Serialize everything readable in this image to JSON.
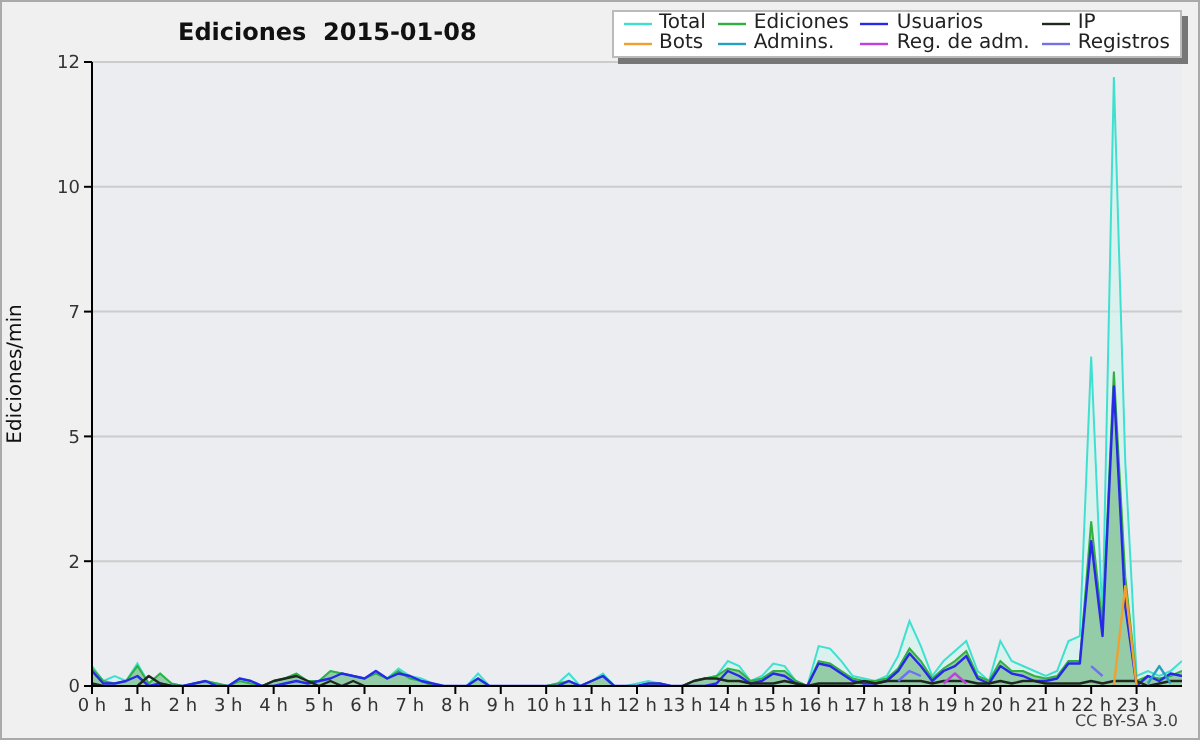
{
  "chart_data": {
    "type": "area",
    "title": "Ediciones  2015-01-08",
    "ylabel": "Ediciones/min",
    "annotations": [
      "CC BY-SA 3.0"
    ],
    "x": [
      0,
      0.25,
      0.5,
      0.75,
      1,
      1.25,
      1.5,
      1.75,
      2,
      2.25,
      2.5,
      2.75,
      3,
      3.25,
      3.5,
      3.75,
      4,
      4.25,
      4.5,
      4.75,
      5,
      5.25,
      5.5,
      5.75,
      6,
      6.25,
      6.5,
      6.75,
      7,
      7.25,
      7.5,
      7.75,
      8,
      8.25,
      8.5,
      8.75,
      9,
      9.25,
      9.5,
      9.75,
      10,
      10.25,
      10.5,
      10.75,
      11,
      11.25,
      11.5,
      11.75,
      12,
      12.25,
      12.5,
      12.75,
      13,
      13.25,
      13.5,
      13.75,
      14,
      14.25,
      14.5,
      14.75,
      15,
      15.25,
      15.5,
      15.75,
      16,
      16.25,
      16.5,
      16.75,
      17,
      17.25,
      17.5,
      17.75,
      18,
      18.25,
      18.5,
      18.75,
      19,
      19.25,
      19.5,
      19.75,
      20,
      20.25,
      20.5,
      20.75,
      21,
      21.25,
      21.5,
      21.75,
      22,
      22.25,
      22.5,
      22.75,
      23,
      23.25,
      23.5,
      23.75,
      24
    ],
    "series": [
      {
        "name": "Total",
        "color": "#40e0d0",
        "values": [
          0.4,
          0.1,
          0.2,
          0.1,
          0.45,
          0.05,
          0.25,
          0.05,
          0,
          0.05,
          0.1,
          0.05,
          0,
          0.15,
          0.1,
          0,
          0.1,
          0.15,
          0.25,
          0.1,
          0.1,
          0.3,
          0.25,
          0.2,
          0.15,
          0.3,
          0.15,
          0.35,
          0.2,
          0.15,
          0.05,
          0,
          0,
          0,
          0.25,
          0,
          0,
          0,
          0,
          0,
          0,
          0.05,
          0.25,
          0,
          0.1,
          0.25,
          0,
          0,
          0.05,
          0.1,
          0.05,
          0,
          0,
          0.1,
          0.15,
          0.2,
          0.5,
          0.4,
          0.1,
          0.2,
          0.45,
          0.4,
          0.1,
          0,
          0.8,
          0.75,
          0.5,
          0.2,
          0.15,
          0.1,
          0.2,
          0.6,
          1.3,
          0.8,
          0.2,
          0.5,
          0.7,
          0.9,
          0.3,
          0.1,
          0.9,
          0.5,
          0.4,
          0.3,
          0.2,
          0.3,
          0.9,
          1.0,
          6.6,
          1.3,
          12.2,
          4.5,
          0.2,
          0.3,
          0.2,
          0.3,
          0.5
        ]
      },
      {
        "name": "Ediciones",
        "color": "#30b040",
        "values": [
          0.35,
          0.1,
          0.05,
          0.1,
          0.4,
          0.05,
          0.25,
          0.05,
          0,
          0.05,
          0.1,
          0.05,
          0,
          0.1,
          0.05,
          0,
          0.1,
          0.15,
          0.25,
          0.1,
          0.1,
          0.3,
          0.25,
          0.2,
          0.15,
          0.25,
          0.15,
          0.3,
          0.15,
          0.1,
          0,
          0,
          0,
          0,
          0.15,
          0,
          0,
          0,
          0,
          0,
          0,
          0.05,
          0.1,
          0,
          0.1,
          0.2,
          0,
          0,
          0,
          0.05,
          0.05,
          0,
          0,
          0.1,
          0.15,
          0.2,
          0.35,
          0.3,
          0.1,
          0.15,
          0.3,
          0.3,
          0.1,
          0,
          0.5,
          0.45,
          0.3,
          0.15,
          0.1,
          0.1,
          0.15,
          0.35,
          0.75,
          0.5,
          0.15,
          0.35,
          0.5,
          0.7,
          0.2,
          0.1,
          0.5,
          0.3,
          0.3,
          0.2,
          0.15,
          0.2,
          0.5,
          0.5,
          3.3,
          1.2,
          6.3,
          2.2,
          0.1,
          0.2,
          0.15,
          0.2,
          0.3
        ]
      },
      {
        "name": "Usuarios",
        "type": "line",
        "color": "#2828e8",
        "values": [
          0.3,
          0.05,
          0.05,
          0.1,
          0.2,
          0,
          0.05,
          0,
          0,
          0.05,
          0.1,
          0,
          0,
          0.15,
          0.1,
          0,
          0,
          0.05,
          0.1,
          0.05,
          0.1,
          0.15,
          0.25,
          0.2,
          0.15,
          0.3,
          0.15,
          0.25,
          0.2,
          0.1,
          0.05,
          0,
          0,
          0,
          0.15,
          0,
          0,
          0,
          0,
          0,
          0,
          0,
          0.1,
          0,
          0.1,
          0.2,
          0,
          0,
          0,
          0.05,
          0.05,
          0,
          0,
          0,
          0,
          0.05,
          0.3,
          0.2,
          0.05,
          0.1,
          0.25,
          0.2,
          0.05,
          0,
          0.45,
          0.4,
          0.25,
          0.1,
          0.05,
          0.05,
          0.1,
          0.3,
          0.65,
          0.4,
          0.1,
          0.3,
          0.4,
          0.6,
          0.15,
          0.05,
          0.4,
          0.25,
          0.2,
          0.1,
          0.1,
          0.15,
          0.45,
          0.45,
          2.9,
          1.0,
          6.0,
          1.6,
          0,
          0.2,
          0.1,
          0.25,
          0.2
        ]
      },
      {
        "name": "IP",
        "type": "line",
        "color": "#202820",
        "values": [
          0.05,
          0,
          null,
          null,
          0,
          0.2,
          0.05,
          0,
          null,
          null,
          null,
          null,
          null,
          null,
          null,
          0,
          0.1,
          0.15,
          0.2,
          0.1,
          0,
          0.1,
          0,
          0.1,
          0,
          null,
          null,
          null,
          null,
          null,
          null,
          null,
          null,
          null,
          null,
          null,
          null,
          null,
          null,
          null,
          null,
          null,
          null,
          null,
          null,
          null,
          null,
          null,
          null,
          null,
          null,
          null,
          0,
          0.1,
          0.15,
          0.15,
          0.1,
          0.1,
          0.05,
          0.05,
          0.05,
          0.1,
          0.05,
          0,
          0.05,
          0.05,
          0.05,
          0.05,
          0.1,
          0.05,
          0.1,
          0.1,
          0.1,
          0.1,
          0.05,
          0.1,
          0.1,
          0.1,
          0.05,
          0.05,
          0.1,
          0.05,
          0.1,
          0.1,
          0.05,
          0.05,
          0.05,
          0.05,
          0.1,
          0.05,
          0.1,
          0.1,
          0.1,
          0,
          0.05,
          0.1,
          0.1
        ]
      },
      {
        "name": "Bots",
        "type": "line",
        "color": "#f0a030",
        "values": [
          null,
          null,
          null,
          null,
          null,
          null,
          null,
          null,
          null,
          null,
          null,
          null,
          null,
          null,
          null,
          null,
          null,
          null,
          null,
          null,
          null,
          null,
          null,
          null,
          null,
          null,
          null,
          null,
          null,
          null,
          null,
          null,
          null,
          null,
          null,
          null,
          null,
          null,
          null,
          null,
          null,
          null,
          null,
          null,
          null,
          null,
          null,
          null,
          null,
          null,
          null,
          null,
          null,
          null,
          null,
          null,
          null,
          null,
          null,
          null,
          null,
          null,
          null,
          null,
          null,
          null,
          null,
          null,
          null,
          null,
          null,
          null,
          null,
          null,
          null,
          null,
          null,
          null,
          null,
          null,
          null,
          null,
          null,
          null,
          null,
          null,
          null,
          null,
          null,
          null,
          0,
          2,
          0,
          null,
          null,
          null,
          null
        ]
      },
      {
        "name": "Admins.",
        "type": "line",
        "color": "#2aa0c0",
        "values": [
          null,
          null,
          null,
          null,
          null,
          null,
          null,
          null,
          null,
          null,
          null,
          null,
          null,
          null,
          null,
          null,
          null,
          null,
          null,
          null,
          null,
          null,
          null,
          null,
          null,
          null,
          null,
          null,
          null,
          null,
          null,
          null,
          null,
          null,
          null,
          null,
          null,
          null,
          null,
          null,
          null,
          null,
          null,
          null,
          null,
          null,
          null,
          null,
          null,
          null,
          null,
          null,
          null,
          null,
          null,
          null,
          null,
          null,
          null,
          null,
          null,
          null,
          null,
          null,
          null,
          null,
          null,
          null,
          null,
          null,
          null,
          null,
          null,
          null,
          null,
          null,
          null,
          null,
          null,
          null,
          null,
          null,
          null,
          null,
          null,
          null,
          null,
          null,
          null,
          null,
          null,
          null,
          null,
          0.05,
          0.4,
          0.05,
          null
        ]
      },
      {
        "name": "Reg. de adm.",
        "type": "line",
        "color": "#c040e0",
        "values": [
          null,
          null,
          null,
          null,
          null,
          null,
          null,
          null,
          null,
          null,
          null,
          null,
          null,
          null,
          null,
          null,
          null,
          null,
          null,
          null,
          null,
          null,
          null,
          null,
          null,
          null,
          null,
          null,
          null,
          null,
          null,
          null,
          null,
          null,
          null,
          null,
          null,
          null,
          null,
          null,
          null,
          null,
          null,
          null,
          null,
          null,
          null,
          null,
          null,
          null,
          null,
          null,
          null,
          null,
          null,
          null,
          null,
          null,
          null,
          null,
          null,
          null,
          null,
          null,
          null,
          null,
          null,
          null,
          null,
          null,
          null,
          null,
          null,
          null,
          null,
          0.05,
          0.25,
          0.05,
          null,
          null,
          null,
          null,
          null,
          null,
          null,
          null,
          null,
          null,
          null,
          null,
          null,
          null,
          null,
          null,
          null,
          null,
          null
        ]
      },
      {
        "name": "Registros",
        "type": "line",
        "color": "#7070f0",
        "values": [
          null,
          null,
          null,
          null,
          null,
          null,
          null,
          null,
          null,
          null,
          null,
          null,
          null,
          null,
          null,
          null,
          null,
          null,
          null,
          null,
          null,
          null,
          null,
          null,
          null,
          null,
          null,
          null,
          null,
          null,
          null,
          null,
          null,
          null,
          null,
          null,
          null,
          null,
          null,
          null,
          null,
          null,
          null,
          null,
          null,
          null,
          null,
          null,
          null,
          null,
          null,
          null,
          null,
          null,
          null,
          null,
          null,
          null,
          null,
          null,
          null,
          null,
          null,
          null,
          null,
          null,
          null,
          null,
          null,
          null,
          null,
          0.1,
          0.3,
          0.2,
          null,
          null,
          null,
          null,
          null,
          null,
          null,
          null,
          null,
          null,
          null,
          null,
          null,
          null,
          0.4,
          0.2,
          null,
          null,
          null,
          null,
          null,
          null,
          null
        ]
      }
    ],
    "xlim": [
      0,
      24
    ],
    "xticks": [
      {
        "value": 0,
        "label": "0 h"
      },
      {
        "value": 1,
        "label": "1 h"
      },
      {
        "value": 2,
        "label": "2 h"
      },
      {
        "value": 3,
        "label": "3 h"
      },
      {
        "value": 4,
        "label": "4 h"
      },
      {
        "value": 5,
        "label": "5 h"
      },
      {
        "value": 6,
        "label": "6 h"
      },
      {
        "value": 7,
        "label": "7 h"
      },
      {
        "value": 8,
        "label": "8 h"
      },
      {
        "value": 9,
        "label": "9 h"
      },
      {
        "value": 10,
        "label": "10 h"
      },
      {
        "value": 11,
        "label": "11 h"
      },
      {
        "value": 12,
        "label": "12 h"
      },
      {
        "value": 13,
        "label": "13 h"
      },
      {
        "value": 14,
        "label": "14 h"
      },
      {
        "value": 15,
        "label": "15 h"
      },
      {
        "value": 16,
        "label": "16 h"
      },
      {
        "value": 17,
        "label": "17 h"
      },
      {
        "value": 18,
        "label": "18 h"
      },
      {
        "value": 19,
        "label": "19 h"
      },
      {
        "value": 20,
        "label": "20 h"
      },
      {
        "value": 21,
        "label": "21 h"
      },
      {
        "value": 22,
        "label": "22 h"
      },
      {
        "value": 23,
        "label": "23 h"
      }
    ],
    "ylim": [
      0,
      12.5
    ],
    "yticks": [
      0,
      {
        "value": 2.5,
        "label": "2"
      },
      5,
      {
        "value": 7.5,
        "label": "7"
      },
      10,
      {
        "value": 12.5,
        "label": "12"
      }
    ],
    "grid": "y",
    "legend": "top right"
  }
}
